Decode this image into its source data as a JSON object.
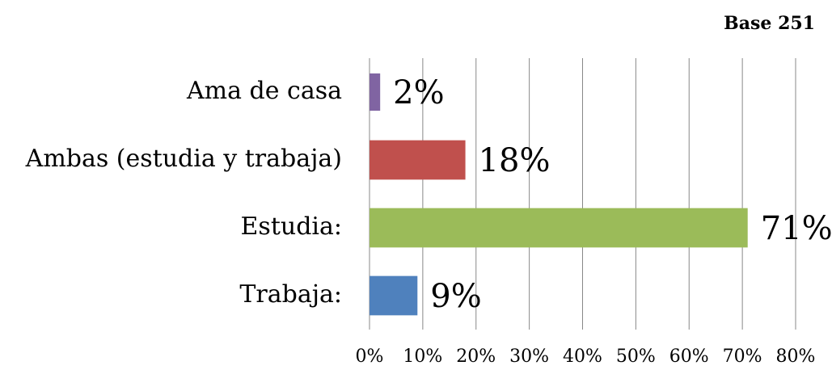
{
  "chart_data": {
    "type": "bar",
    "orientation": "horizontal",
    "title": "Base 251",
    "categories": [
      "Ama de casa",
      "Ambas (estudia y trabaja)",
      "Estudia:",
      "Trabaja:"
    ],
    "values": [
      2,
      18,
      71,
      9
    ],
    "value_labels": [
      "2%",
      "18%",
      "71%",
      "9%"
    ],
    "colors": [
      "#8064a2",
      "#c0504d",
      "#9bbb59",
      "#4f81bd"
    ],
    "xlim": [
      0,
      80
    ],
    "xticks": [
      {
        "value": 0,
        "label": "0%"
      },
      {
        "value": 10,
        "label": "10%"
      },
      {
        "value": 20,
        "label": "20%"
      },
      {
        "value": 30,
        "label": "30%"
      },
      {
        "value": 40,
        "label": "40%"
      },
      {
        "value": 50,
        "label": "50%"
      },
      {
        "value": 60,
        "label": "60%"
      },
      {
        "value": 70,
        "label": "70%"
      },
      {
        "value": 80,
        "label": "80%"
      }
    ],
    "grid": true
  }
}
